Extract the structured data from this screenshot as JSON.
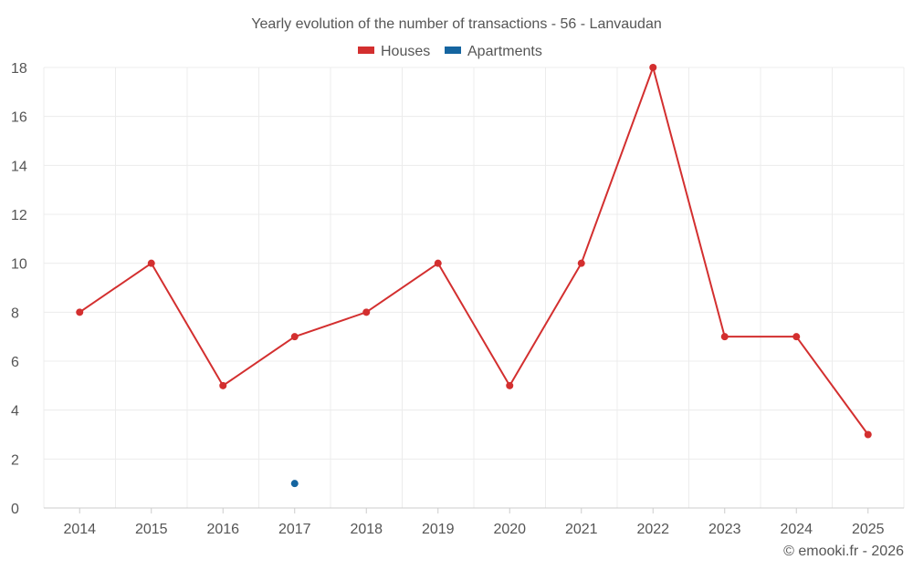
{
  "chart_data": {
    "type": "line",
    "title": "Yearly evolution of the number of transactions - 56 - Lanvaudan",
    "categories": [
      "2014",
      "2015",
      "2016",
      "2017",
      "2018",
      "2019",
      "2020",
      "2021",
      "2022",
      "2023",
      "2024",
      "2025"
    ],
    "series": [
      {
        "name": "Houses",
        "color": "#d32f2f",
        "values": [
          8,
          10,
          5,
          7,
          8,
          10,
          5,
          10,
          18,
          7,
          7,
          3
        ]
      },
      {
        "name": "Apartments",
        "color": "#1565a0",
        "values": [
          null,
          null,
          null,
          1,
          null,
          null,
          null,
          null,
          null,
          null,
          null,
          null
        ]
      }
    ],
    "ylim": [
      0,
      18
    ],
    "yticks": [
      0,
      2,
      4,
      6,
      8,
      10,
      12,
      14,
      16,
      18
    ],
    "xlabel": "",
    "ylabel": "",
    "grid": true,
    "legend_position": "top-center"
  },
  "credit": "© emooki.fr - 2026"
}
